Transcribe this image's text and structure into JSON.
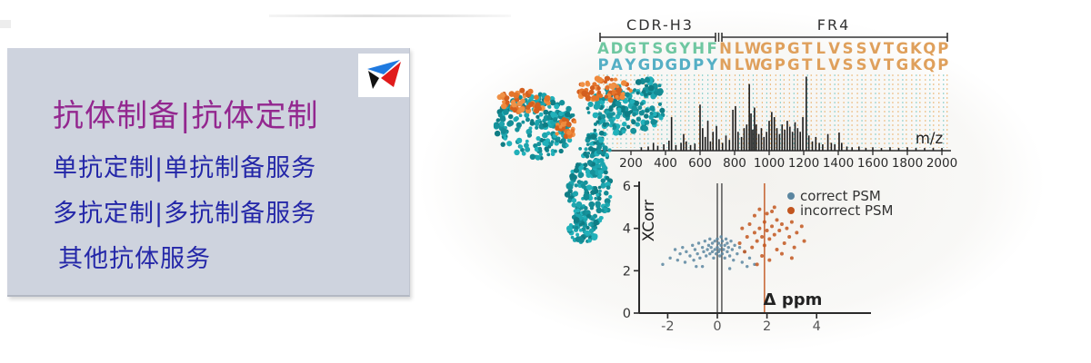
{
  "panel": {
    "title": "抗体制备|抗体定制",
    "services": [
      "单抗定制|单抗制备服务",
      "多抗定制|多抗制备服务",
      "其他抗体服务"
    ],
    "colors": {
      "bg": "#ced3de",
      "title": "#93278f",
      "service": "#2427a8"
    }
  },
  "logo": {
    "name": "triangle-logo",
    "colors": {
      "blue": "#1f7ae0",
      "black": "#121212",
      "red": "#e01b1b"
    }
  },
  "figure": {
    "sequence": {
      "regions": [
        {
          "label": "CDR-H3",
          "row1": "ADGTSGYHF",
          "row2": "PAYGDGDPY",
          "row1_color": "#6fc7a1",
          "row2_color": "#55afc5"
        },
        {
          "label": "FR4",
          "row1": "NLWGPGTLVSSVTGKQP",
          "row2": "NLWGPGTLVSSVTGKQP",
          "row1_color": "#dfa05c",
          "row2_color": "#dfa05c"
        }
      ],
      "label_color": "#333333",
      "marker_colors": {
        "teal": "#96d3d0",
        "orange": "#edc089"
      }
    },
    "illustration": "antibody-space-filling-model",
    "illustration_colors": {
      "teal": "#16929b",
      "orange": "#e4742b"
    }
  },
  "chart_data": [
    {
      "type": "mass_spectrum",
      "xlabel": "m/z",
      "x_ticks": [
        200,
        400,
        600,
        800,
        1000,
        1200,
        1400,
        1600,
        1800,
        2000
      ],
      "x_range": [
        110,
        2060
      ],
      "peak_color": "#1c1c1c",
      "peaks": [
        [
          260,
          0.04
        ],
        [
          300,
          0.05
        ],
        [
          330,
          0.1
        ],
        [
          355,
          0.06
        ],
        [
          390,
          0.08
        ],
        [
          420,
          0.13
        ],
        [
          435,
          0.45
        ],
        [
          460,
          0.07
        ],
        [
          490,
          0.1
        ],
        [
          505,
          0.22
        ],
        [
          520,
          0.12
        ],
        [
          545,
          0.07
        ],
        [
          570,
          0.09
        ],
        [
          600,
          0.62
        ],
        [
          615,
          0.3
        ],
        [
          630,
          0.18
        ],
        [
          645,
          0.4
        ],
        [
          660,
          0.12
        ],
        [
          675,
          0.25
        ],
        [
          695,
          0.33
        ],
        [
          710,
          0.15
        ],
        [
          730,
          0.1
        ],
        [
          750,
          0.2
        ],
        [
          770,
          0.14
        ],
        [
          790,
          0.55
        ],
        [
          805,
          0.6
        ],
        [
          820,
          0.25
        ],
        [
          840,
          0.18
        ],
        [
          855,
          0.3
        ],
        [
          870,
          0.35
        ],
        [
          885,
          0.9
        ],
        [
          895,
          0.5
        ],
        [
          905,
          0.28
        ],
        [
          915,
          0.58
        ],
        [
          925,
          0.35
        ],
        [
          940,
          0.22
        ],
        [
          955,
          0.3
        ],
        [
          970,
          0.18
        ],
        [
          985,
          0.25
        ],
        [
          1000,
          0.4
        ],
        [
          1015,
          0.52
        ],
        [
          1030,
          0.45
        ],
        [
          1045,
          0.3
        ],
        [
          1060,
          0.22
        ],
        [
          1075,
          0.35
        ],
        [
          1090,
          0.28
        ],
        [
          1105,
          0.4
        ],
        [
          1120,
          0.32
        ],
        [
          1135,
          0.25
        ],
        [
          1150,
          0.38
        ],
        [
          1165,
          0.3
        ],
        [
          1180,
          0.25
        ],
        [
          1195,
          0.45
        ],
        [
          1215,
          1.0
        ],
        [
          1230,
          0.2
        ],
        [
          1250,
          0.12
        ],
        [
          1270,
          0.18
        ],
        [
          1290,
          0.1
        ],
        [
          1310,
          0.08
        ],
        [
          1340,
          0.22
        ],
        [
          1360,
          0.1
        ],
        [
          1380,
          0.08
        ],
        [
          1405,
          0.24
        ],
        [
          1420,
          0.1
        ],
        [
          1450,
          0.05
        ],
        [
          1480,
          0.04
        ],
        [
          1520,
          0.05
        ],
        [
          1560,
          0.03
        ],
        [
          1600,
          0.04
        ],
        [
          1650,
          0.03
        ],
        [
          1700,
          0.04
        ],
        [
          1750,
          0.03
        ],
        [
          1800,
          0.04
        ],
        [
          1850,
          0.03
        ],
        [
          1900,
          0.03
        ],
        [
          1950,
          0.03
        ],
        [
          2000,
          0.03
        ]
      ]
    },
    {
      "type": "scatter",
      "xlabel": "Δ ppm",
      "ylabel": "XCorr",
      "xlim": [
        -3.1,
        6.2
      ],
      "ylim": [
        0,
        6
      ],
      "x_ticks": [
        -2,
        0,
        2,
        4
      ],
      "y_ticks": [
        0,
        2,
        4,
        6
      ],
      "vlines": [
        {
          "x": 0.0,
          "color": "#4a4a4a"
        },
        {
          "x": 0.18,
          "color": "#4a4a4a"
        },
        {
          "x": 1.9,
          "color": "#c2561f"
        }
      ],
      "legend": [
        {
          "label": "correct PSM",
          "color": "#5b86a0"
        },
        {
          "label": "incorrect PSM",
          "color": "#c2561f"
        }
      ],
      "series": [
        {
          "name": "correct PSM",
          "color": "#5b86a0",
          "points": [
            [
              -2.2,
              2.3
            ],
            [
              -1.9,
              2.6
            ],
            [
              -1.7,
              3.0
            ],
            [
              -1.6,
              2.5
            ],
            [
              -1.5,
              2.8
            ],
            [
              -1.4,
              3.1
            ],
            [
              -1.3,
              2.4
            ],
            [
              -1.25,
              2.9
            ],
            [
              -1.1,
              2.7
            ],
            [
              -1.0,
              3.2
            ],
            [
              -0.95,
              2.5
            ],
            [
              -0.9,
              3.0
            ],
            [
              -0.85,
              2.2
            ],
            [
              -0.8,
              2.8
            ],
            [
              -0.75,
              3.3
            ],
            [
              -0.7,
              2.6
            ],
            [
              -0.6,
              3.1
            ],
            [
              -0.6,
              2.2
            ],
            [
              -0.55,
              2.9
            ],
            [
              -0.5,
              3.4
            ],
            [
              -0.45,
              2.7
            ],
            [
              -0.4,
              3.0
            ],
            [
              -0.35,
              3.2
            ],
            [
              -0.3,
              2.8
            ],
            [
              -0.3,
              3.5
            ],
            [
              -0.25,
              3.1
            ],
            [
              -0.2,
              2.9
            ],
            [
              -0.2,
              3.3
            ],
            [
              -0.15,
              2.6
            ],
            [
              -0.1,
              3.0
            ],
            [
              -0.1,
              3.4
            ],
            [
              -0.05,
              2.8
            ],
            [
              0,
              3.1
            ],
            [
              0,
              3.5
            ],
            [
              0.05,
              2.9
            ],
            [
              0.05,
              3.3
            ],
            [
              0.1,
              2.7
            ],
            [
              0.1,
              3.0
            ],
            [
              0.15,
              3.2
            ],
            [
              0.15,
              3.6
            ],
            [
              0.2,
              2.8
            ],
            [
              0.2,
              3.4
            ],
            [
              0.25,
              3.0
            ],
            [
              0.3,
              3.2
            ],
            [
              0.3,
              2.6
            ],
            [
              0.35,
              3.5
            ],
            [
              0.4,
              2.9
            ],
            [
              0.4,
              3.3
            ],
            [
              0.45,
              3.1
            ],
            [
              0.5,
              2.7
            ],
            [
              0.5,
              2.1
            ],
            [
              0.55,
              3.4
            ],
            [
              0.6,
              3.0
            ],
            [
              0.65,
              2.5
            ],
            [
              0.7,
              3.2
            ],
            [
              0.8,
              2.8
            ],
            [
              0.9,
              3.1
            ],
            [
              1.0,
              2.4
            ],
            [
              1.1,
              2.9
            ],
            [
              1.2,
              2.2
            ],
            [
              1.3,
              2.6
            ],
            [
              1.5,
              2.3
            ]
          ]
        },
        {
          "name": "incorrect PSM",
          "color": "#c2561f",
          "points": [
            [
              0.9,
              3.3
            ],
            [
              1.0,
              4.0
            ],
            [
              1.1,
              2.9
            ],
            [
              1.2,
              3.6
            ],
            [
              1.3,
              4.2
            ],
            [
              1.4,
              3.1
            ],
            [
              1.5,
              3.8
            ],
            [
              1.5,
              4.6
            ],
            [
              1.6,
              3.4
            ],
            [
              1.6,
              2.3
            ],
            [
              1.7,
              4.0
            ],
            [
              1.7,
              4.9
            ],
            [
              1.8,
              3.6
            ],
            [
              1.8,
              2.7
            ],
            [
              1.9,
              4.3
            ],
            [
              1.9,
              3.2
            ],
            [
              2.0,
              3.9
            ],
            [
              2.0,
              4.7
            ],
            [
              2.1,
              3.5
            ],
            [
              2.1,
              2.5
            ],
            [
              2.2,
              4.1
            ],
            [
              2.2,
              4.8
            ],
            [
              2.3,
              3.7
            ],
            [
              2.3,
              5.0
            ],
            [
              2.4,
              4.4
            ],
            [
              2.4,
              3.0
            ],
            [
              2.5,
              3.9
            ],
            [
              2.6,
              4.2
            ],
            [
              2.6,
              2.8
            ],
            [
              2.7,
              3.3
            ],
            [
              2.8,
              4.0
            ],
            [
              2.9,
              3.6
            ],
            [
              3.0,
              4.3
            ],
            [
              3.0,
              2.6
            ],
            [
              3.1,
              3.1
            ],
            [
              3.2,
              3.8
            ],
            [
              3.4,
              4.1
            ],
            [
              3.5,
              3.4
            ]
          ]
        }
      ]
    }
  ]
}
